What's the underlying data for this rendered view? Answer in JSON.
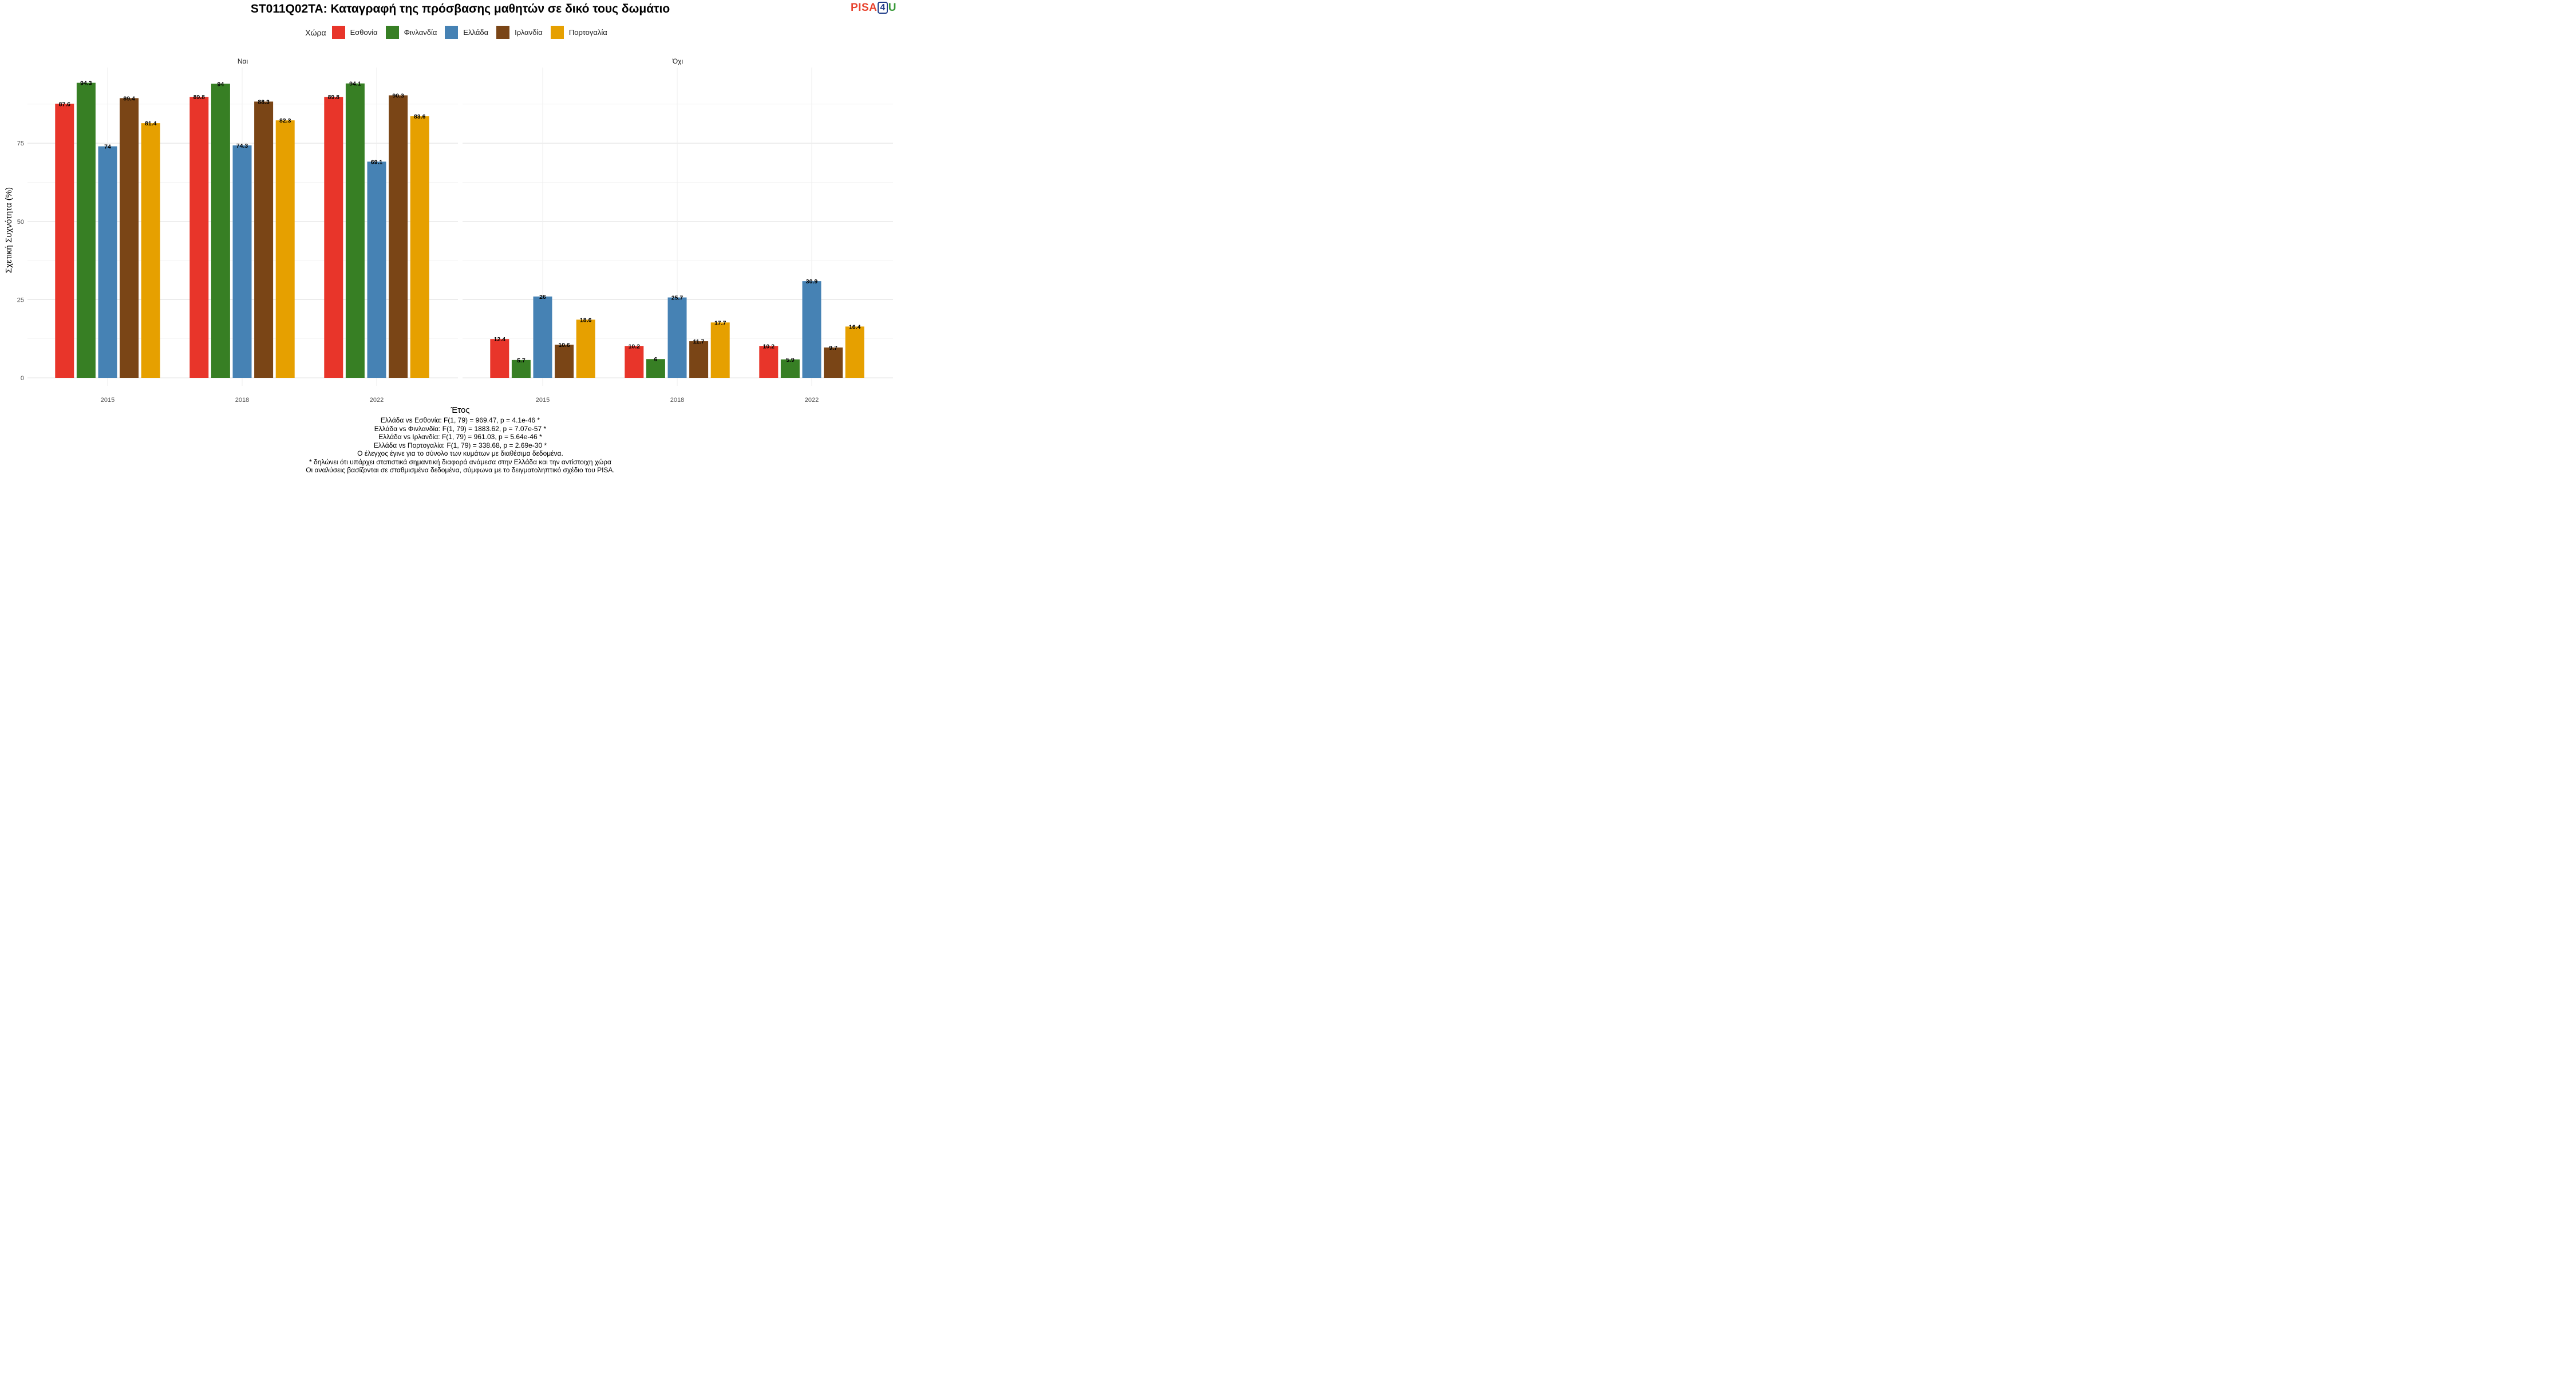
{
  "chart_data": {
    "type": "bar",
    "title": "ST011Q02TA: Καταγραφή της πρόσβασης μαθητών σε δικό τους δωμάτιο",
    "xlabel": "Έτος",
    "ylabel": "Σχετική Συχνότητα (%)",
    "ylim": [
      0,
      97
    ],
    "yticks": [
      0,
      25,
      50,
      75
    ],
    "grid": true,
    "legend_title": "Χώρα",
    "legend_position": "top",
    "categories": [
      "2015",
      "2018",
      "2022"
    ],
    "series_colors": [
      "#e8352a",
      "#377f24",
      "#4682b4",
      "#7a4516",
      "#e6a000"
    ],
    "series_names": [
      "Εσθονία",
      "Φινλανδία",
      "Ελλάδα",
      "Ιρλανδία",
      "Πορτογαλία"
    ],
    "panels": [
      {
        "label": "Ναι",
        "series": [
          {
            "name": "Εσθονία",
            "values": [
              87.6,
              89.8,
              89.8
            ]
          },
          {
            "name": "Φινλανδία",
            "values": [
              94.3,
              94,
              94.1
            ]
          },
          {
            "name": "Ελλάδα",
            "values": [
              74,
              74.3,
              69.1
            ]
          },
          {
            "name": "Ιρλανδία",
            "values": [
              89.4,
              88.3,
              90.3
            ]
          },
          {
            "name": "Πορτογαλία",
            "values": [
              81.4,
              82.3,
              83.6
            ]
          }
        ]
      },
      {
        "label": "Όχι",
        "series": [
          {
            "name": "Εσθονία",
            "values": [
              12.4,
              10.2,
              10.2
            ]
          },
          {
            "name": "Φινλανδία",
            "values": [
              5.7,
              6,
              5.9
            ]
          },
          {
            "name": "Ελλάδα",
            "values": [
              26,
              25.7,
              30.9
            ]
          },
          {
            "name": "Ιρλανδία",
            "values": [
              10.6,
              11.7,
              9.7
            ]
          },
          {
            "name": "Πορτογαλία",
            "values": [
              18.6,
              17.7,
              16.4
            ]
          }
        ]
      }
    ]
  },
  "logo": {
    "part1": "PISA",
    "part2": "4",
    "part3": "U"
  },
  "notes": [
    "Ελλάδα vs Εσθονία: F(1, 79) = 969.47, p = 4.1e-46 *",
    "Ελλάδα vs Φινλανδία: F(1, 79) = 1883.62, p = 7.07e-57 *",
    "Ελλάδα vs Ιρλανδία: F(1, 79) = 961.03, p = 5.64e-46 *",
    "Ελλάδα vs Πορτογαλία: F(1, 79) = 338.68, p = 2.69e-30 *",
    "Ο έλεγχος έγινε για το σύνολο των κυμάτων με διαθέσιμα δεδομένα.",
    "* δηλώνει ότι υπάρχει στατιστικά σημαντική διαφορά ανάμεσα στην Ελλάδα και την αντίστοιχη χώρα",
    "Οι αναλύσεις βασίζονται σε σταθμισμένα δεδομένα, σύμφωνα με το δειγματοληπτικό σχέδιο του PISA."
  ]
}
